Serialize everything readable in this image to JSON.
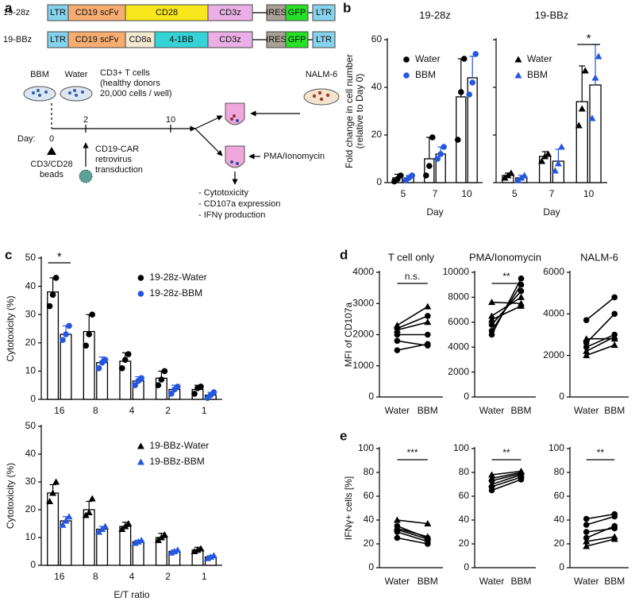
{
  "panel_labels": [
    "a",
    "b",
    "c",
    "d",
    "e"
  ],
  "diagram": {
    "constructs": [
      {
        "name": "19-28z",
        "segments": [
          {
            "label": "LTR",
            "color": "#86d3ee"
          },
          {
            "label": "CD19 scFv",
            "color": "#f7ad72"
          },
          {
            "label": "CD28",
            "color": "#f8e71c"
          },
          {
            "label": "CD3z",
            "color": "#eab0e6"
          },
          {
            "label": "IRES",
            "color": "#aaa196"
          },
          {
            "label": "GFP",
            "color": "#27e027"
          },
          {
            "label": "LTR",
            "color": "#86d3ee"
          }
        ]
      },
      {
        "name": "19-BBz",
        "segments": [
          {
            "label": "LTR",
            "color": "#86d3ee"
          },
          {
            "label": "CD19 scFv",
            "color": "#f7ad72"
          },
          {
            "label": "CD8a",
            "color": "#f4ead2"
          },
          {
            "label": "4-1BB",
            "color": "#35d3d6"
          },
          {
            "label": "CD3z",
            "color": "#eab0e6"
          },
          {
            "label": "IRES",
            "color": "#aaa196"
          },
          {
            "label": "GFP",
            "color": "#27e027"
          },
          {
            "label": "LTR",
            "color": "#86d3ee"
          }
        ]
      }
    ],
    "timeline": {
      "dish_labels": [
        "BBM",
        "Water"
      ],
      "cells": [
        "CD3+ T cells",
        "(healthy donors",
        "20,000 cells / well)"
      ],
      "day_label": "Day:",
      "days": [
        0,
        2,
        10
      ],
      "beads": [
        "CD3/CD28",
        "beads"
      ],
      "transduction": [
        "CD19-CAR",
        "retrovirus",
        "transduction"
      ],
      "target": "NALM-6",
      "stim": "PMA/Ionomycin",
      "readouts": [
        "- Cytotoxicity",
        "- CD107a expression",
        "- IFNγ production"
      ]
    }
  },
  "chart_data": [
    {
      "type": "bar",
      "title": "19-28z",
      "ylabel": [
        "Fold change in cell number",
        "(relative to Day 0)"
      ],
      "xlabel": "Day",
      "categories": [
        "5",
        "7",
        "10"
      ],
      "ylim": [
        0,
        60
      ],
      "yticks": [
        0,
        20,
        40,
        60
      ],
      "legend": "upper left",
      "series": [
        {
          "name": "Water",
          "color": "#000000",
          "marker": "circle",
          "values": [
            2,
            10,
            36
          ],
          "errors": [
            1.5,
            9,
            16
          ],
          "points": [
            [
              0.5,
              1.5,
              3
            ],
            [
              3,
              7,
              19
            ],
            [
              18,
              38,
              52
            ]
          ]
        },
        {
          "name": "BBM",
          "color": "#2457e0",
          "marker": "circle",
          "values": [
            2,
            12,
            44
          ],
          "errors": [
            1,
            3,
            9
          ],
          "points": [
            [
              1,
              2,
              3
            ],
            [
              10,
              12,
              15
            ],
            [
              37,
              42,
              54
            ]
          ]
        }
      ]
    },
    {
      "type": "bar",
      "title": "19-BBz",
      "xlabel": "Day",
      "categories": [
        "5",
        "7",
        "10"
      ],
      "ylim": [
        0,
        60
      ],
      "yticks": [
        0,
        20,
        40,
        60
      ],
      "show_ytick_labels": false,
      "legend": "upper left",
      "annotations": [
        {
          "text": "*",
          "category": "10"
        }
      ],
      "series": [
        {
          "name": "Water",
          "color": "#000000",
          "marker": "triangle",
          "values": [
            3,
            11,
            34
          ],
          "errors": [
            1,
            2,
            15
          ],
          "points": [
            [
              2,
              3,
              4
            ],
            [
              9,
              11,
              12
            ],
            [
              24,
              31,
              47
            ]
          ]
        },
        {
          "name": "BBM",
          "color": "#2457e0",
          "marker": "triangle",
          "values": [
            2,
            9,
            41
          ],
          "errors": [
            1,
            5,
            17
          ],
          "points": [
            [
              1,
              2,
              3
            ],
            [
              5,
              8,
              15
            ],
            [
              27,
              44,
              53
            ]
          ]
        }
      ]
    },
    {
      "type": "bar",
      "ylabel": "Cytotoxicity (%)",
      "categories": [
        "16",
        "8",
        "4",
        "2",
        "1"
      ],
      "ylim": [
        0,
        50
      ],
      "yticks": [
        0,
        10,
        20,
        30,
        40,
        50
      ],
      "legend": "upper right",
      "annotations": [
        {
          "text": "*",
          "category": "16"
        }
      ],
      "series": [
        {
          "name": "19-28z-Water",
          "color": "#000000",
          "marker": "circle",
          "values": [
            38,
            24,
            13.5,
            7.5,
            3.5
          ],
          "errors": [
            5,
            6,
            3,
            2.5,
            1.5
          ],
          "points": [
            [
              33,
              37,
              43
            ],
            [
              19,
              23,
              30
            ],
            [
              11,
              14,
              16
            ],
            [
              5,
              7,
              10
            ],
            [
              2,
              4,
              4.5
            ]
          ]
        },
        {
          "name": "19-28z-BBM",
          "color": "#2457e0",
          "marker": "circle",
          "values": [
            23,
            13,
            6.5,
            3.5,
            1.5
          ],
          "errors": [
            3,
            2,
            1.5,
            1.5,
            1
          ],
          "points": [
            [
              21,
              23,
              26
            ],
            [
              11,
              13,
              14
            ],
            [
              5,
              6.5,
              7.5
            ],
            [
              2,
              3.5,
              4.5
            ],
            [
              0.5,
              1.5,
              2.5
            ]
          ]
        }
      ]
    },
    {
      "type": "bar",
      "ylabel": "Cytotoxicity (%)",
      "xlabel": "E/T ratio",
      "categories": [
        "16",
        "8",
        "4",
        "2",
        "1"
      ],
      "ylim": [
        0,
        50
      ],
      "yticks": [
        0,
        10,
        20,
        30,
        40,
        50
      ],
      "legend": "upper right",
      "series": [
        {
          "name": "19-BBz-Water",
          "color": "#000000",
          "marker": "triangle",
          "values": [
            26,
            20,
            14,
            10,
            5.5
          ],
          "errors": [
            3,
            3,
            1.5,
            1.5,
            1
          ],
          "points": [
            [
              23,
              26,
              30
            ],
            [
              18,
              19,
              24
            ],
            [
              13,
              14,
              15
            ],
            [
              9,
              10,
              11
            ],
            [
              5,
              5.5,
              6
            ]
          ]
        },
        {
          "name": "19-BBz-BBM",
          "color": "#2457e0",
          "marker": "triangle",
          "values": [
            16,
            13,
            8.5,
            5,
            3
          ],
          "errors": [
            1.5,
            1,
            0.5,
            0.5,
            0.5
          ],
          "points": [
            [
              14.5,
              16,
              17.5
            ],
            [
              12,
              13,
              14
            ],
            [
              8,
              8.5,
              9
            ],
            [
              4.5,
              5,
              5.5
            ],
            [
              2.5,
              3,
              3.5
            ]
          ]
        }
      ]
    },
    {
      "type": "line",
      "title": "T cell only",
      "ylabel": "MFI of CD107a",
      "categories": [
        "Water",
        "BBM"
      ],
      "ylim": [
        0,
        4000
      ],
      "yticks": [
        0,
        1000,
        2000,
        3000,
        4000
      ],
      "annotations": [
        {
          "text": "n.s."
        }
      ],
      "series": [
        {
          "color": "#000000",
          "marker": "circle",
          "values": [
            1500,
            1700
          ]
        },
        {
          "color": "#000000",
          "marker": "circle",
          "values": [
            1800,
            1650
          ]
        },
        {
          "color": "#000000",
          "marker": "circle",
          "values": [
            2000,
            2000
          ]
        },
        {
          "color": "#000000",
          "marker": "triangle",
          "values": [
            2150,
            2400
          ]
        },
        {
          "color": "#000000",
          "marker": "circle",
          "values": [
            2200,
            2600
          ]
        },
        {
          "color": "#000000",
          "marker": "triangle",
          "values": [
            2300,
            2900
          ]
        }
      ]
    },
    {
      "type": "line",
      "title": "PMA/Ionomycin",
      "categories": [
        "Water",
        "BBM"
      ],
      "ylim": [
        0,
        10000
      ],
      "yticks": [
        0,
        2000,
        4000,
        6000,
        8000,
        10000
      ],
      "annotations": [
        {
          "text": "**"
        }
      ],
      "series": [
        {
          "color": "#000000",
          "marker": "circle",
          "values": [
            5000,
            9500
          ]
        },
        {
          "color": "#000000",
          "marker": "circle",
          "values": [
            5300,
            9000
          ]
        },
        {
          "color": "#000000",
          "marker": "circle",
          "values": [
            5800,
            8500
          ]
        },
        {
          "color": "#000000",
          "marker": "triangle",
          "values": [
            6200,
            7300
          ]
        },
        {
          "color": "#000000",
          "marker": "triangle",
          "values": [
            6500,
            8000
          ]
        },
        {
          "color": "#000000",
          "marker": "triangle",
          "values": [
            7600,
            7500
          ]
        }
      ]
    },
    {
      "type": "line",
      "title": "NALM-6",
      "categories": [
        "Water",
        "BBM"
      ],
      "ylim": [
        0,
        6000
      ],
      "yticks": [
        0,
        2000,
        4000,
        6000
      ],
      "series": [
        {
          "color": "#000000",
          "marker": "triangle",
          "values": [
            2000,
            2500
          ]
        },
        {
          "color": "#000000",
          "marker": "triangle",
          "values": [
            2200,
            2900
          ]
        },
        {
          "color": "#000000",
          "marker": "circle",
          "values": [
            2400,
            3000
          ]
        },
        {
          "color": "#000000",
          "marker": "circle",
          "values": [
            2600,
            4000
          ]
        },
        {
          "color": "#000000",
          "marker": "triangle",
          "values": [
            2800,
            2800
          ]
        },
        {
          "color": "#000000",
          "marker": "circle",
          "values": [
            3700,
            4800
          ]
        }
      ]
    },
    {
      "type": "line",
      "ylabel": "IFNγ+ cells [%]",
      "categories": [
        "Water",
        "BBM"
      ],
      "ylim": [
        0,
        100
      ],
      "yticks": [
        0,
        20,
        40,
        60,
        80,
        100
      ],
      "annotations": [
        {
          "text": "***"
        }
      ],
      "series": [
        {
          "color": "#000000",
          "marker": "circle",
          "values": [
            25,
            20
          ]
        },
        {
          "color": "#000000",
          "marker": "circle",
          "values": [
            30,
            22
          ]
        },
        {
          "color": "#000000",
          "marker": "circle",
          "values": [
            32,
            24
          ]
        },
        {
          "color": "#000000",
          "marker": "triangle",
          "values": [
            33,
            26
          ]
        },
        {
          "color": "#000000",
          "marker": "circle",
          "values": [
            35,
            25
          ]
        },
        {
          "color": "#000000",
          "marker": "triangle",
          "values": [
            40,
            37
          ]
        }
      ]
    },
    {
      "type": "line",
      "categories": [
        "Water",
        "BBM"
      ],
      "ylim": [
        0,
        100
      ],
      "yticks": [
        0,
        20,
        40,
        60,
        80,
        100
      ],
      "annotations": [
        {
          "text": "**"
        }
      ],
      "series": [
        {
          "color": "#000000",
          "marker": "circle",
          "values": [
            65,
            74
          ]
        },
        {
          "color": "#000000",
          "marker": "circle",
          "values": [
            68,
            76
          ]
        },
        {
          "color": "#000000",
          "marker": "triangle",
          "values": [
            70,
            78
          ]
        },
        {
          "color": "#000000",
          "marker": "circle",
          "values": [
            73,
            79
          ]
        },
        {
          "color": "#000000",
          "marker": "triangle",
          "values": [
            75,
            80
          ]
        },
        {
          "color": "#000000",
          "marker": "triangle",
          "values": [
            78,
            81
          ]
        }
      ]
    },
    {
      "type": "line",
      "categories": [
        "Water",
        "BBM"
      ],
      "ylim": [
        0,
        100
      ],
      "yticks": [
        0,
        20,
        40,
        60,
        80,
        100
      ],
      "annotations": [
        {
          "text": "**"
        }
      ],
      "series": [
        {
          "color": "#000000",
          "marker": "triangle",
          "values": [
            18,
            24
          ]
        },
        {
          "color": "#000000",
          "marker": "triangle",
          "values": [
            22,
            26
          ]
        },
        {
          "color": "#000000",
          "marker": "circle",
          "values": [
            25,
            35
          ]
        },
        {
          "color": "#000000",
          "marker": "circle",
          "values": [
            30,
            33
          ]
        },
        {
          "color": "#000000",
          "marker": "circle",
          "values": [
            36,
            43
          ]
        },
        {
          "color": "#000000",
          "marker": "circle",
          "values": [
            41,
            45
          ]
        }
      ]
    }
  ]
}
